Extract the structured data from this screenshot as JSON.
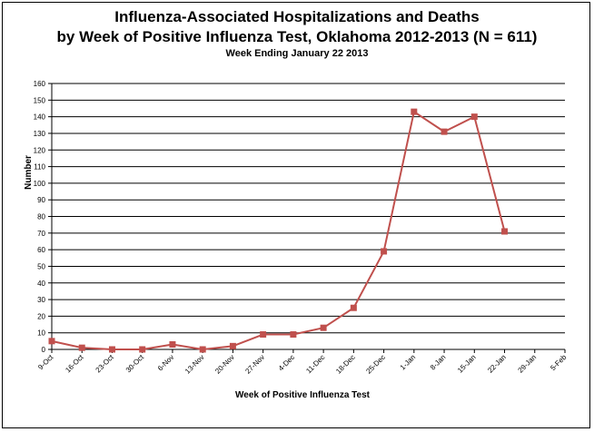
{
  "chart_data": {
    "type": "line",
    "title": "Influenza-Associated Hospitalizations and Deaths",
    "title_line2": "by Week of Positive Influenza Test, Oklahoma 2012-2013 (N = 611)",
    "subtitle": "Week Ending January 22 2013",
    "xlabel": "Week of Positive Influenza Test",
    "ylabel": "Number",
    "ylim": [
      0,
      160
    ],
    "ytick_step": 10,
    "grid": true,
    "legend": "none",
    "color": "#c0504d",
    "categories": [
      "9-Oct",
      "16-Oct",
      "23-Oct",
      "30-Oct",
      "6-Nov",
      "13-Nov",
      "20-Nov",
      "27-Nov",
      "4-Dec",
      "11-Dec",
      "18-Dec",
      "25-Dec",
      "1-Jan",
      "8-Jan",
      "15-Jan",
      "22-Jan",
      "29-Jan",
      "5-Feb"
    ],
    "series": [
      {
        "values": [
          5,
          1,
          0,
          0,
          3,
          0,
          2,
          9,
          9,
          13,
          25,
          59,
          143,
          131,
          140,
          71,
          null,
          null
        ]
      }
    ]
  }
}
